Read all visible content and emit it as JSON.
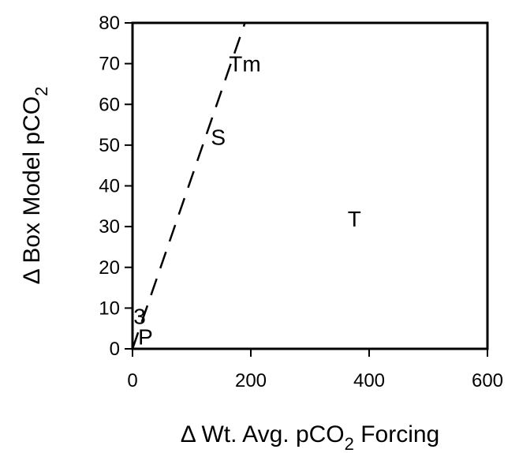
{
  "chart_data": {
    "type": "scatter",
    "title": "",
    "xlabel": "Δ Wt. Avg. pCO",
    "xlabel_sub": "2",
    "xlabel_suffix": " Forcing",
    "ylabel": "Δ Box Model pCO",
    "ylabel_sub": "2",
    "xlim": [
      0,
      600
    ],
    "ylim": [
      0,
      80
    ],
    "x_ticks": [
      "0",
      "200",
      "400",
      "600"
    ],
    "y_ticks": [
      "0",
      "10",
      "20",
      "30",
      "40",
      "50",
      "60",
      "70",
      "80"
    ],
    "grid": false,
    "legend": "none",
    "points": [
      {
        "label": "Tm",
        "x": 190,
        "y": 70
      },
      {
        "label": "S",
        "x": 145,
        "y": 52
      },
      {
        "label": "T",
        "x": 375,
        "y": 32
      },
      {
        "label": "3",
        "x": 12,
        "y": 8
      },
      {
        "label": "P",
        "x": 22,
        "y": 3
      }
    ],
    "fit_line": {
      "style": "dashed",
      "x": [
        0,
        190
      ],
      "y": [
        0,
        80
      ]
    }
  }
}
